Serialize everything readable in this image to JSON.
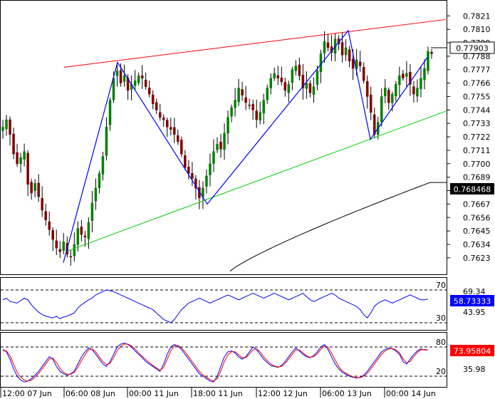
{
  "chart_data": [
    {
      "type": "candlestick",
      "panel": "price",
      "ylim": [
        0.7613,
        0.7827
      ],
      "y_ticks": [
        "0.7821",
        "0.7810",
        "0.7799",
        "0.7788",
        "0.7777",
        "0.7766",
        "0.7755",
        "0.7744",
        "0.7733",
        "0.7722",
        "0.7711",
        "0.7700",
        "0.7689",
        "0.7678",
        "0.7667",
        "0.7656",
        "0.7645",
        "0.7634",
        "0.7623"
      ],
      "current_price_label": "0.77903",
      "current_price": 0.77903,
      "ma_label": "0.768468",
      "ma_value": 0.768468,
      "x_tick_labels": [
        "12:00 07 Jun",
        "06:00 08 Jun",
        "00:00 11 Jun",
        "18:00 11 Jun",
        "12:00 12 Jun",
        "06:00 13 Jun",
        "00:00 14 Jun"
      ],
      "colors": {
        "bull": "#008000",
        "bear": "#800000",
        "resistance": "#ff0000",
        "support": "#00d000",
        "pattern": "#0000ff",
        "ma": "#000000"
      },
      "resistance_line": [
        [
          0,
          0.7779
        ],
        [
          1,
          0.7818
        ]
      ],
      "support_line": [
        [
          0,
          0.7628
        ],
        [
          1,
          0.7743
        ]
      ],
      "zigzag_points": [
        0.7619,
        0.7783,
        0.7667,
        0.7809,
        0.772,
        0.7787
      ],
      "close_path": [
        0.773,
        0.7736,
        0.7724,
        0.7708,
        0.77,
        0.7705,
        0.771,
        0.7683,
        0.7676,
        0.7684,
        0.7673,
        0.7662,
        0.7654,
        0.7646,
        0.7638,
        0.7631,
        0.7628,
        0.7636,
        0.7626,
        0.7624,
        0.7634,
        0.7647,
        0.7642,
        0.764,
        0.7652,
        0.7668,
        0.768,
        0.7692,
        0.7706,
        0.773,
        0.7752,
        0.777,
        0.7776,
        0.7766,
        0.7772,
        0.776,
        0.7765,
        0.7768,
        0.7772,
        0.777,
        0.7763,
        0.7757,
        0.7749,
        0.7744,
        0.7738,
        0.7736,
        0.773,
        0.7728,
        0.7724,
        0.7718,
        0.7708,
        0.7697,
        0.7692,
        0.7688,
        0.768,
        0.7672,
        0.768,
        0.769,
        0.77,
        0.771,
        0.7716,
        0.7712,
        0.7725,
        0.7738,
        0.7746,
        0.7752,
        0.7762,
        0.7756,
        0.775,
        0.7748,
        0.7744,
        0.7736,
        0.7742,
        0.7752,
        0.7762,
        0.777,
        0.7774,
        0.777,
        0.7767,
        0.776,
        0.7765,
        0.7777,
        0.778,
        0.7772,
        0.7762,
        0.7766,
        0.7758,
        0.7763,
        0.7776,
        0.779,
        0.78,
        0.7795,
        0.7791,
        0.7802,
        0.7798,
        0.7789,
        0.7795,
        0.7784,
        0.7778,
        0.7785,
        0.778,
        0.7768,
        0.7755,
        0.7742,
        0.7724,
        0.7734,
        0.7755,
        0.7762,
        0.775,
        0.7757,
        0.7765,
        0.7772,
        0.777,
        0.7774,
        0.7765,
        0.7757,
        0.7762,
        0.777,
        0.7778,
        0.7792,
        0.779
      ]
    },
    {
      "type": "line",
      "panel": "oscillator-1",
      "ylim": [
        20,
        80
      ],
      "levels": [
        70,
        30
      ],
      "level_labels": [
        "70",
        "30"
      ],
      "axis_labels": [
        "69.34",
        "43.95"
      ],
      "current_value_label": "58.73333",
      "current_value": 58.73333,
      "series_colors": [
        "#0000ff"
      ],
      "values": [
        58,
        60,
        56,
        55,
        54,
        57,
        60,
        58,
        52,
        47,
        43,
        40,
        38,
        37,
        36,
        38,
        35,
        37,
        38,
        40,
        42,
        48,
        52,
        55,
        58,
        60,
        64,
        66,
        68,
        70,
        69,
        68,
        66,
        64,
        62,
        60,
        58,
        56,
        54,
        52,
        50,
        48,
        46,
        42,
        38,
        34,
        32,
        30,
        34,
        40,
        46,
        50,
        54,
        56,
        58,
        60,
        58,
        56,
        54,
        56,
        58,
        60,
        62,
        64,
        62,
        60,
        58,
        60,
        62,
        64,
        66,
        64,
        62,
        60,
        62,
        64,
        66,
        64,
        62,
        60,
        58,
        60,
        62,
        64,
        66,
        62,
        58,
        56,
        58,
        60,
        62,
        64,
        66,
        64,
        60,
        58,
        56,
        54,
        52,
        50,
        46,
        40,
        36,
        42,
        50,
        54,
        56,
        58,
        56,
        54,
        56,
        58,
        60,
        62,
        64,
        62,
        60,
        58,
        58,
        59
      ]
    },
    {
      "type": "line",
      "panel": "oscillator-2",
      "ylim": [
        0,
        100
      ],
      "levels": [
        80,
        20
      ],
      "level_labels": [
        "80",
        "20"
      ],
      "axis_labels": [
        "35.98"
      ],
      "current_value_label": "73.95804",
      "current_value": 73.95804,
      "series_colors": [
        "#0000ff",
        "#ff0000"
      ],
      "values_blue": [
        75,
        70,
        55,
        35,
        20,
        12,
        8,
        10,
        15,
        22,
        30,
        40,
        50,
        60,
        55,
        40,
        30,
        25,
        22,
        25,
        30,
        45,
        60,
        70,
        78,
        75,
        65,
        55,
        45,
        40,
        50,
        65,
        80,
        86,
        88,
        85,
        80,
        72,
        65,
        58,
        50,
        45,
        40,
        35,
        30,
        45,
        65,
        80,
        85,
        82,
        75,
        65,
        55,
        45,
        35,
        25,
        20,
        15,
        10,
        8,
        20,
        40,
        60,
        70,
        72,
        68,
        60,
        55,
        60,
        70,
        80,
        75,
        65,
        55,
        48,
        42,
        40,
        38,
        42,
        50,
        60,
        70,
        78,
        72,
        65,
        60,
        58,
        62,
        70,
        80,
        85,
        75,
        60,
        45,
        35,
        28,
        24,
        20,
        18,
        16,
        18,
        22,
        30,
        40,
        50,
        60,
        70,
        75,
        78,
        76,
        72,
        65,
        50,
        45,
        55,
        65,
        72,
        76,
        74,
        74
      ],
      "values_red": [
        72,
        72,
        62,
        45,
        28,
        18,
        12,
        10,
        12,
        18,
        26,
        35,
        45,
        55,
        57,
        48,
        36,
        28,
        24,
        24,
        28,
        38,
        52,
        64,
        74,
        76,
        70,
        60,
        50,
        44,
        46,
        58,
        72,
        82,
        86,
        86,
        82,
        76,
        68,
        61,
        54,
        48,
        42,
        37,
        32,
        38,
        55,
        72,
        82,
        83,
        78,
        70,
        60,
        50,
        40,
        30,
        23,
        18,
        13,
        10,
        15,
        30,
        50,
        64,
        70,
        70,
        64,
        58,
        58,
        65,
        74,
        76,
        70,
        60,
        52,
        45,
        41,
        39,
        40,
        46,
        55,
        65,
        74,
        74,
        68,
        62,
        59,
        60,
        66,
        75,
        82,
        80,
        68,
        53,
        40,
        31,
        26,
        22,
        19,
        17,
        17,
        20,
        26,
        35,
        45,
        55,
        65,
        72,
        76,
        77,
        74,
        68,
        56,
        48,
        50,
        60,
        69,
        74,
        75,
        74
      ]
    }
  ]
}
